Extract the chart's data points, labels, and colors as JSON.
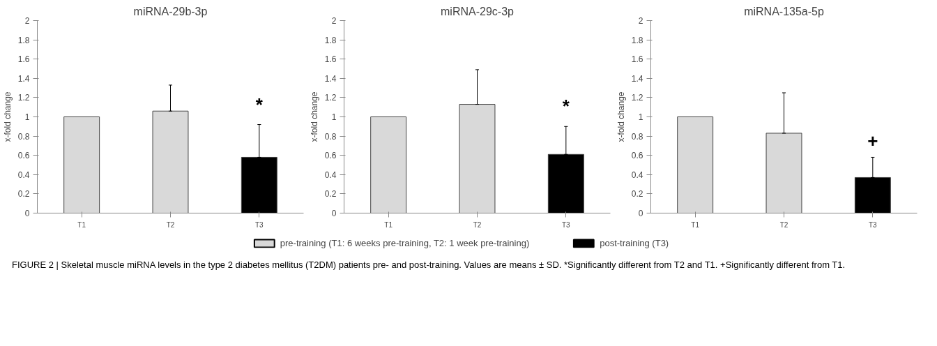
{
  "chart_data": [
    {
      "type": "bar",
      "title": "miRNA-29b-3p",
      "ylabel": "x-fold change",
      "categories": [
        "T1",
        "T2",
        "T3"
      ],
      "series": [
        {
          "name": "pre-training (T1: 6 weeks pre-training, T2: 1 week pre-training)",
          "color": "#d9d9d9",
          "values": [
            1,
            1.06,
            null
          ],
          "errors": [
            null,
            [
              1.06,
              1.33
            ],
            null
          ]
        },
        {
          "name": "post-training (T3)",
          "color": "#000000",
          "values": [
            null,
            null,
            0.58
          ],
          "errors": [
            null,
            null,
            [
              0.58,
              0.92
            ]
          ]
        }
      ],
      "ylim": [
        0,
        2
      ],
      "yticks": [
        0,
        0.2,
        0.4,
        0.6,
        0.8,
        1,
        1.2,
        1.4,
        1.6,
        1.8,
        2
      ],
      "grid": false,
      "legend": "bottom",
      "annotations": [
        "*"
      ]
    },
    {
      "type": "bar",
      "title": "miRNA-29c-3p",
      "ylabel": "x-fold change",
      "categories": [
        "T1",
        "T2",
        "T3"
      ],
      "series": [
        {
          "color": "#d9d9d9",
          "values": [
            1,
            1.13,
            null
          ],
          "errors": [
            null,
            [
              1.13,
              1.49
            ],
            null
          ]
        },
        {
          "color": "#000000",
          "values": [
            null,
            null,
            0.61
          ],
          "errors": [
            null,
            null,
            [
              0.61,
              0.9
            ]
          ]
        }
      ],
      "ylim": [
        0,
        2
      ],
      "yticks": [
        0,
        0.2,
        0.4,
        0.6,
        0.8,
        1,
        1.2,
        1.4,
        1.6,
        1.8,
        2
      ],
      "grid": false,
      "annotations": [
        "*"
      ]
    },
    {
      "type": "bar",
      "title": "miRNA-135a-5p",
      "ylabel": "x-fold change",
      "categories": [
        "T1",
        "T2",
        "T3"
      ],
      "series": [
        {
          "color": "#d9d9d9",
          "values": [
            1,
            0.83,
            null
          ],
          "errors": [
            null,
            [
              0.83,
              1.25
            ],
            null
          ]
        },
        {
          "color": "#000000",
          "values": [
            null,
            null,
            0.37
          ],
          "errors": [
            null,
            null,
            [
              0.37,
              0.58
            ]
          ]
        }
      ],
      "ylim": [
        0,
        2
      ],
      "yticks": [
        0,
        0.2,
        0.4,
        0.6,
        0.8,
        1,
        1.2,
        1.4,
        1.6,
        1.8,
        2
      ],
      "grid": false,
      "annotations": [
        "+",
        "FIGURE 2 | Skeletal muscle miRNA levels in the type 2 diabetes mellitus (T2DM) patients pre- and post-training. Values are means ± SD. *Significantly different from T2 and T1. +Significantly different from T1."
      ]
    }
  ]
}
